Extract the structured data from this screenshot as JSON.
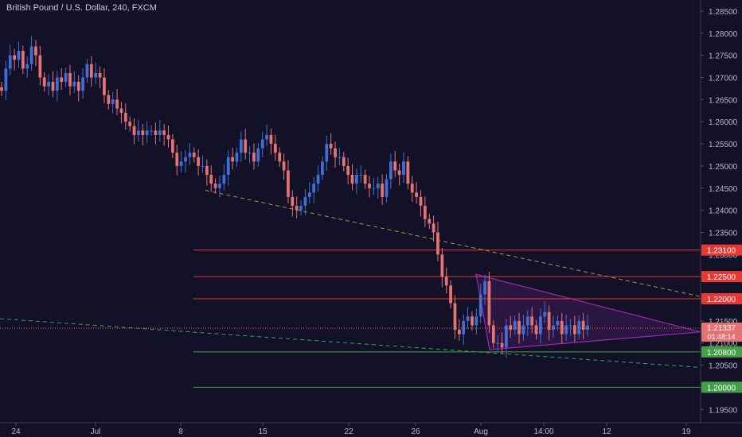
{
  "title": "British Pound / U.S. Dollar, 240, FXCM",
  "colors": {
    "background": "#131127",
    "up_candle": "#3f6fd6",
    "down_candle": "#e57373",
    "axis_text": "#b8bac4",
    "resistance_line": "#e53935",
    "support_line": "#43a047",
    "triangle": "#9c27b0",
    "triangle_fill": "#2a1640",
    "trend_yellow": "#9e9e45",
    "trend_green": "#3fa34d",
    "price_line": "#e57373"
  },
  "chart_data": {
    "type": "candlestick",
    "title": "British Pound / U.S. Dollar, 240, FXCM",
    "symbol": "GBPUSD",
    "interval": "240",
    "source": "FXCM",
    "ylim": [
      1.192,
      1.2875
    ],
    "x_tick_labels": [
      "24",
      "Jul",
      "8",
      "15",
      "22",
      "26",
      "Aug",
      "14:00",
      "12",
      "19"
    ],
    "y_tick_labels": [
      "1.28500",
      "1.28000",
      "1.27500",
      "1.27000",
      "1.26500",
      "1.26000",
      "1.25500",
      "1.25000",
      "1.24500",
      "1.24000",
      "1.23500",
      "1.23000",
      "1.22500",
      "1.22000",
      "1.21500",
      "1.21000",
      "1.20500",
      "1.20000",
      "1.19500"
    ],
    "y_ticks": [
      1.285,
      1.28,
      1.275,
      1.27,
      1.265,
      1.26,
      1.255,
      1.25,
      1.245,
      1.24,
      1.235,
      1.23,
      1.225,
      1.22,
      1.215,
      1.21,
      1.205,
      1.2,
      1.195
    ],
    "price_levels": [
      {
        "label": "1.23100",
        "value": 1.231,
        "type": "resistance"
      },
      {
        "label": "1.22500",
        "value": 1.225,
        "type": "resistance"
      },
      {
        "label": "1.22000",
        "value": 1.22,
        "type": "resistance"
      },
      {
        "label": "1.20800",
        "value": 1.208,
        "type": "support"
      },
      {
        "label": "1.20000",
        "value": 1.2,
        "type": "support"
      }
    ],
    "current_price": {
      "label": "1.21337",
      "value": 1.21337,
      "countdown": "01:48:14"
    },
    "candles_close": [
      1.267,
      1.272,
      1.275,
      1.274,
      1.276,
      1.272,
      1.273,
      1.277,
      1.275,
      1.27,
      1.268,
      1.269,
      1.267,
      1.27,
      1.269,
      1.271,
      1.268,
      1.269,
      1.267,
      1.27,
      1.273,
      1.27,
      1.271,
      1.27,
      1.266,
      1.264,
      1.265,
      1.263,
      1.262,
      1.26,
      1.259,
      1.257,
      1.258,
      1.257,
      1.258,
      1.258,
      1.257,
      1.258,
      1.257,
      1.256,
      1.253,
      1.25,
      1.251,
      1.252,
      1.253,
      1.252,
      1.25,
      1.25,
      1.248,
      1.246,
      1.245,
      1.246,
      1.248,
      1.252,
      1.251,
      1.253,
      1.256,
      1.253,
      1.253,
      1.251,
      1.254,
      1.256,
      1.257,
      1.255,
      1.253,
      1.251,
      1.249,
      1.243,
      1.241,
      1.24,
      1.241,
      1.243,
      1.244,
      1.246,
      1.248,
      1.251,
      1.255,
      1.254,
      1.252,
      1.252,
      1.25,
      1.248,
      1.246,
      1.248,
      1.248,
      1.246,
      1.245,
      1.245,
      1.246,
      1.243,
      1.247,
      1.251,
      1.249,
      1.248,
      1.251,
      1.246,
      1.244,
      1.243,
      1.241,
      1.238,
      1.237,
      1.235,
      1.23,
      1.225,
      1.223,
      1.219,
      1.213,
      1.212,
      1.215,
      1.216,
      1.214,
      1.216,
      1.221,
      1.224,
      1.214,
      1.21,
      1.21,
      1.209,
      1.214,
      1.213,
      1.215,
      1.212,
      1.214,
      1.216,
      1.214,
      1.212,
      1.216,
      1.217,
      1.213,
      1.214,
      1.215,
      1.212,
      1.214,
      1.214,
      1.212,
      1.215,
      1.213,
      1.214
    ]
  }
}
